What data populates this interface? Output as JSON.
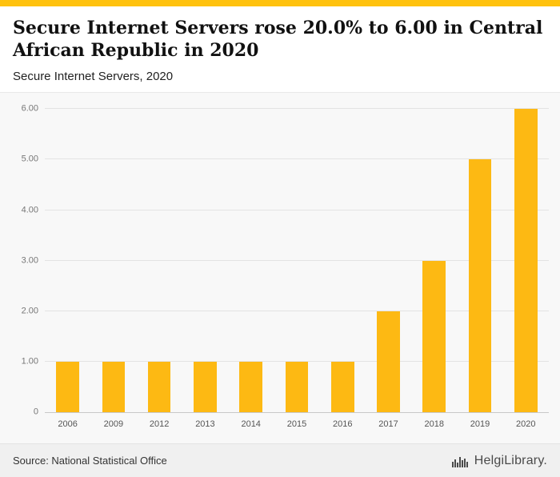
{
  "accent_color": "#ffc20e",
  "header": {
    "title": "Secure Internet Servers rose 20.0% to 6.00 in Central African Republic in 2020",
    "subtitle": "Secure Internet Servers, 2020"
  },
  "chart_data": {
    "type": "bar",
    "title": "Secure Internet Servers rose 20.0% to 6.00 in Central African Republic in 2020",
    "subtitle": "Secure Internet Servers, 2020",
    "categories": [
      "2006",
      "2009",
      "2012",
      "2013",
      "2014",
      "2015",
      "2016",
      "2017",
      "2018",
      "2019",
      "2020"
    ],
    "values": [
      1,
      1,
      1,
      1,
      1,
      1,
      1,
      2,
      3,
      5,
      6
    ],
    "xlabel": "",
    "ylabel": "",
    "ylim": [
      0,
      6
    ],
    "ytick_step": 1,
    "ytick_labels": [
      "0",
      "1.00",
      "2.00",
      "3.00",
      "4.00",
      "5.00",
      "6.00"
    ],
    "grid": true,
    "legend": false,
    "bar_color": "#fdb913"
  },
  "footer": {
    "source": "Source: National Statistical Office",
    "logo_text": "HelgiLibrary",
    "logo_suffix": "."
  }
}
